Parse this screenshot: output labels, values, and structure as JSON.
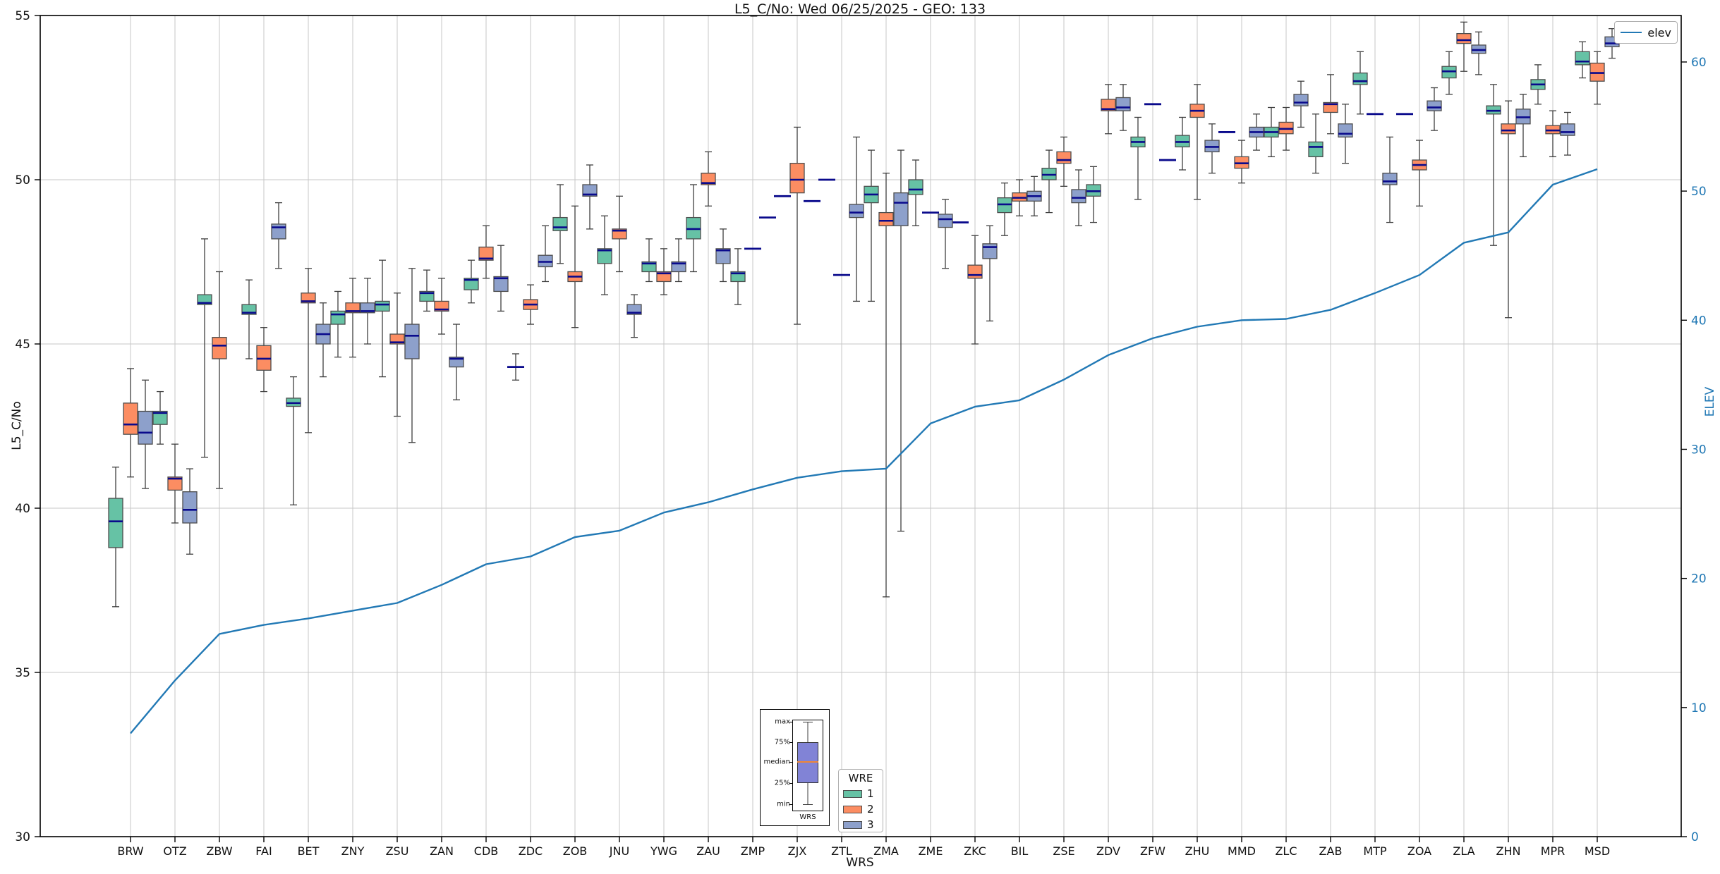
{
  "title": "L5_C/No: Wed 06/25/2025 - GEO: 133",
  "axes": {
    "x_label": "WRS",
    "y_left_label": "L5_C/No",
    "y_left_ticks": [
      30,
      35,
      40,
      45,
      50,
      55
    ],
    "y_left_range": [
      30,
      55
    ],
    "y_right_label": "ELEV",
    "y_right_ticks": [
      0,
      10,
      20,
      30,
      40,
      50,
      60
    ],
    "y_right_range": [
      0,
      63.6
    ],
    "grid": true
  },
  "colors": {
    "wre1": "#66c2a5",
    "wre2": "#fc8d62",
    "wre3": "#8da0cb",
    "box_edge": "#4d4d4d",
    "whisker": "#3f3f3f",
    "median": "#0a0a8c",
    "grid": "#c7c7c7",
    "elev_line": "#2279b5",
    "right_axis_text": "#1f77b4",
    "inset_box_fill": "#8183d6",
    "inset_median": "#ef8636"
  },
  "legend_elev": {
    "label": "elev"
  },
  "legend_wre": {
    "title": "WRE",
    "items": [
      {
        "label": "1",
        "color": "#66c2a5"
      },
      {
        "label": "2",
        "color": "#fc8d62"
      },
      {
        "label": "3",
        "color": "#8da0cb"
      }
    ]
  },
  "inset_legend": {
    "labels": {
      "max": "max",
      "p75": "75%",
      "median": "median",
      "p25": "25%",
      "min": "min"
    },
    "x_label": "WRS"
  },
  "chart_data": {
    "type": "boxplot+line",
    "title": "L5_C/No: Wed 06/25/2025 - GEO: 133",
    "xlabel": "WRS",
    "ylabel_left": "L5_C/No",
    "ylabel_right": "ELEV",
    "ylim_left": [
      30,
      55
    ],
    "ylim_right": [
      0,
      63.6
    ],
    "categories": [
      "BRW",
      "OTZ",
      "ZBW",
      "FAI",
      "BET",
      "ZNY",
      "ZSU",
      "ZAN",
      "CDB",
      "ZDC",
      "ZOB",
      "JNU",
      "YWG",
      "ZAU",
      "ZMP",
      "ZJX",
      "ZTL",
      "ZMA",
      "ZME",
      "ZKC",
      "BIL",
      "ZSE",
      "ZDV",
      "ZFW",
      "ZHU",
      "MMD",
      "ZLC",
      "ZAB",
      "MTP",
      "ZOA",
      "ZLA",
      "ZHN",
      "MPR",
      "MSD"
    ],
    "box_series": [
      {
        "name": "1",
        "color": "#66c2a5",
        "note": "each entry is [whisker_min, q1, median, q3, whisker_max] of L5_C/No; equal values = degenerate (median dash only); null = no data",
        "values": [
          [
            37.0,
            38.8,
            39.6,
            40.3,
            41.25
          ],
          [
            41.95,
            42.55,
            42.9,
            42.95,
            43.55
          ],
          [
            41.55,
            46.2,
            46.25,
            46.5,
            48.2
          ],
          [
            44.55,
            45.9,
            45.95,
            46.2,
            46.95
          ],
          [
            40.1,
            43.1,
            43.2,
            43.35,
            44.0
          ],
          [
            44.6,
            45.6,
            45.9,
            46.0,
            46.6
          ],
          [
            44.0,
            46.0,
            46.2,
            46.3,
            47.55
          ],
          [
            46.0,
            46.3,
            46.55,
            46.6,
            47.25
          ],
          [
            46.25,
            46.65,
            46.95,
            47.0,
            47.55
          ],
          [
            43.9,
            44.3,
            44.3,
            44.3,
            44.7
          ],
          [
            47.45,
            48.45,
            48.55,
            48.85,
            49.85
          ],
          [
            46.5,
            47.45,
            47.85,
            47.9,
            48.9
          ],
          [
            46.9,
            47.2,
            47.45,
            47.5,
            48.2
          ],
          [
            47.2,
            48.2,
            48.5,
            48.85,
            49.85
          ],
          [
            46.2,
            46.9,
            47.15,
            47.2,
            47.9
          ],
          [
            49.5,
            49.5,
            49.5,
            49.5,
            49.5
          ],
          [
            50.0,
            50.0,
            50.0,
            50.0,
            50.0
          ],
          [
            46.3,
            49.3,
            49.55,
            49.8,
            50.9
          ],
          [
            48.6,
            49.55,
            49.7,
            50.0,
            50.6
          ],
          [
            48.7,
            48.7,
            48.7,
            48.7,
            48.7
          ],
          [
            48.3,
            49.0,
            49.25,
            49.45,
            49.9
          ],
          [
            49.0,
            50.0,
            50.15,
            50.35,
            50.9
          ],
          [
            48.7,
            49.5,
            49.65,
            49.85,
            50.4
          ],
          [
            49.4,
            51.0,
            51.15,
            51.3,
            51.9
          ],
          [
            50.3,
            51.0,
            51.15,
            51.35,
            51.9
          ],
          [
            51.45,
            51.45,
            51.45,
            51.45,
            51.45
          ],
          [
            50.7,
            51.3,
            51.45,
            51.6,
            52.2
          ],
          [
            50.2,
            50.7,
            51.0,
            51.15,
            52.0
          ],
          [
            52.0,
            52.9,
            53.0,
            53.25,
            53.9
          ],
          [
            52.0,
            52.0,
            52.0,
            52.0,
            52.0
          ],
          [
            52.6,
            53.1,
            53.3,
            53.45,
            53.9
          ],
          [
            48.0,
            52.0,
            52.1,
            52.25,
            52.9
          ],
          [
            52.3,
            52.75,
            52.9,
            53.05,
            53.5
          ],
          [
            53.1,
            53.5,
            53.6,
            53.9,
            54.2
          ]
        ]
      },
      {
        "name": "2",
        "color": "#fc8d62",
        "values": [
          [
            40.95,
            42.25,
            42.55,
            43.2,
            44.25
          ],
          [
            39.55,
            40.55,
            40.9,
            40.95,
            41.95
          ],
          [
            40.6,
            44.55,
            44.95,
            45.2,
            47.2
          ],
          [
            43.55,
            44.2,
            44.55,
            44.95,
            45.5
          ],
          [
            42.3,
            46.25,
            46.3,
            46.55,
            47.3
          ],
          [
            44.6,
            45.95,
            46.0,
            46.25,
            47.0
          ],
          [
            42.8,
            45.0,
            45.05,
            45.3,
            46.55
          ],
          [
            45.3,
            46.0,
            46.05,
            46.3,
            47.0
          ],
          [
            47.0,
            47.55,
            47.6,
            47.95,
            48.6
          ],
          [
            45.6,
            46.05,
            46.2,
            46.35,
            46.8
          ],
          [
            45.5,
            46.9,
            47.05,
            47.2,
            49.2
          ],
          [
            47.2,
            48.2,
            48.45,
            48.5,
            49.5
          ],
          [
            46.5,
            46.9,
            47.15,
            47.2,
            47.9
          ],
          [
            49.2,
            49.85,
            49.9,
            50.2,
            50.85
          ],
          [
            47.9,
            47.9,
            47.9,
            47.9,
            47.9
          ],
          [
            45.6,
            49.6,
            50.0,
            50.5,
            51.6
          ],
          [
            47.1,
            47.1,
            47.1,
            47.1,
            47.1
          ],
          [
            37.3,
            48.6,
            48.75,
            49.0,
            50.2
          ],
          [
            49.0,
            49.0,
            49.0,
            49.0,
            49.0
          ],
          [
            45.0,
            47.0,
            47.1,
            47.4,
            48.3
          ],
          [
            48.9,
            49.35,
            49.45,
            49.6,
            50.0
          ],
          [
            49.8,
            50.5,
            50.6,
            50.85,
            51.3
          ],
          [
            51.4,
            52.1,
            52.15,
            52.45,
            52.9
          ],
          [
            52.3,
            52.3,
            52.3,
            52.3,
            52.3
          ],
          [
            49.4,
            51.9,
            52.1,
            52.3,
            52.9
          ],
          [
            49.9,
            50.35,
            50.5,
            50.7,
            51.2
          ],
          [
            50.9,
            51.4,
            51.55,
            51.75,
            52.2
          ],
          [
            51.4,
            52.05,
            52.3,
            52.35,
            53.2
          ],
          [
            52.0,
            52.0,
            52.0,
            52.0,
            52.0
          ],
          [
            49.2,
            50.3,
            50.45,
            50.6,
            51.2
          ],
          [
            53.3,
            54.15,
            54.25,
            54.45,
            54.8
          ],
          [
            45.8,
            51.4,
            51.5,
            51.7,
            52.4
          ],
          [
            50.7,
            51.4,
            51.5,
            51.65,
            52.1
          ],
          [
            52.3,
            53.0,
            53.25,
            53.55,
            53.9
          ]
        ]
      },
      {
        "name": "3",
        "color": "#8da0cb",
        "values": [
          [
            40.6,
            41.95,
            42.3,
            42.95,
            43.9
          ],
          [
            38.6,
            39.55,
            39.95,
            40.5,
            41.2
          ],
          null,
          [
            47.3,
            48.2,
            48.55,
            48.65,
            49.3
          ],
          [
            44.0,
            45.0,
            45.3,
            45.6,
            46.25
          ],
          [
            45.0,
            45.95,
            46.0,
            46.25,
            47.0
          ],
          [
            42.0,
            44.55,
            45.25,
            45.6,
            47.3
          ],
          [
            43.3,
            44.3,
            44.55,
            44.6,
            45.6
          ],
          [
            46.0,
            46.6,
            47.0,
            47.05,
            48.0
          ],
          [
            46.9,
            47.35,
            47.5,
            47.7,
            48.6
          ],
          [
            48.5,
            49.5,
            49.55,
            49.85,
            50.45
          ],
          [
            45.2,
            45.9,
            45.95,
            46.2,
            46.5
          ],
          [
            46.9,
            47.2,
            47.45,
            47.5,
            48.2
          ],
          [
            46.9,
            47.45,
            47.85,
            47.9,
            48.5
          ],
          [
            48.85,
            48.85,
            48.85,
            48.85,
            48.85
          ],
          [
            49.35,
            49.35,
            49.35,
            49.35,
            49.35
          ],
          [
            46.3,
            48.85,
            49.0,
            49.25,
            51.3
          ],
          [
            39.3,
            48.6,
            49.3,
            49.6,
            50.9
          ],
          [
            47.3,
            48.55,
            48.8,
            48.95,
            49.4
          ],
          [
            45.7,
            47.6,
            47.95,
            48.05,
            48.6
          ],
          [
            48.9,
            49.35,
            49.5,
            49.65,
            50.1
          ],
          [
            48.6,
            49.3,
            49.45,
            49.7,
            50.3
          ],
          [
            51.5,
            52.1,
            52.2,
            52.5,
            52.9
          ],
          [
            50.6,
            50.6,
            50.6,
            50.6,
            50.6
          ],
          [
            50.2,
            50.85,
            51.0,
            51.2,
            51.7
          ],
          [
            50.9,
            51.3,
            51.45,
            51.6,
            52.0
          ],
          [
            51.6,
            52.25,
            52.35,
            52.6,
            53.0
          ],
          [
            50.5,
            51.3,
            51.4,
            51.7,
            52.3
          ],
          [
            48.7,
            49.85,
            49.95,
            50.2,
            51.3
          ],
          [
            51.5,
            52.1,
            52.2,
            52.4,
            52.8
          ],
          [
            53.2,
            53.85,
            53.95,
            54.1,
            54.5
          ],
          [
            50.7,
            51.7,
            51.9,
            52.15,
            52.6
          ],
          [
            50.75,
            51.35,
            51.45,
            51.7,
            52.05
          ],
          [
            53.7,
            54.05,
            54.15,
            54.35,
            54.6
          ]
        ]
      }
    ],
    "line_series": {
      "name": "elev",
      "axis": "right",
      "color": "#2279b5",
      "values": [
        8.0,
        12.1,
        15.7,
        16.4,
        16.9,
        17.5,
        18.1,
        19.5,
        21.1,
        21.7,
        23.2,
        23.7,
        25.1,
        25.9,
        26.9,
        27.8,
        28.3,
        28.5,
        32.0,
        33.3,
        33.8,
        35.4,
        37.3,
        38.6,
        39.5,
        40.0,
        40.1,
        40.8,
        42.1,
        43.5,
        46.0,
        46.8,
        50.5,
        51.7
      ]
    }
  }
}
